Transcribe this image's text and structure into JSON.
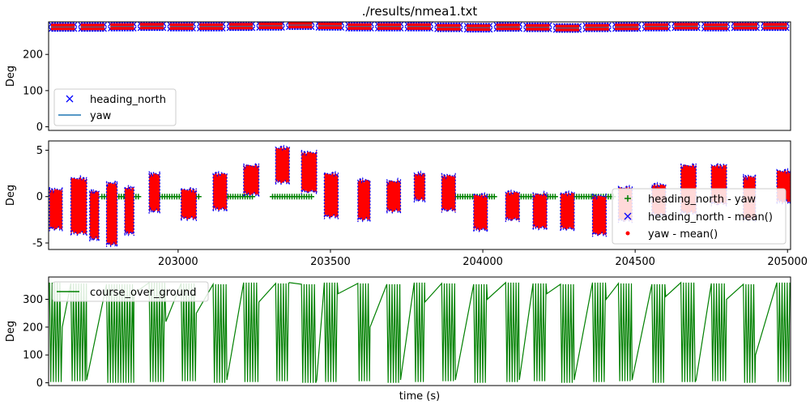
{
  "figure_title": "./results/nmea1.txt",
  "colors": {
    "heading_north": "#0000ff",
    "yaw": "#1f77b4",
    "diff": "#008000",
    "yaw_mean": "#ff0000",
    "cog": "#008000"
  },
  "chart_data": [
    {
      "type": "scatter",
      "title": "./results/nmea1.txt",
      "xlabel": "",
      "ylabel": "Deg",
      "xlim": [
        202575,
        205010
      ],
      "ylim": [
        -10,
        290
      ],
      "yticks": [
        0,
        100,
        200
      ],
      "legend_position": "lower-left",
      "series": [
        {
          "name": "heading_north",
          "marker": "x",
          "segments_y": [
            276,
            276,
            277,
            278,
            277,
            277,
            278,
            279,
            281,
            279,
            277,
            277,
            277,
            275,
            274,
            276,
            275,
            273,
            275,
            276,
            277,
            278,
            277,
            278,
            278
          ]
        },
        {
          "name": "yaw",
          "marker": "line",
          "segments_y": [
            276,
            276,
            277,
            278,
            277,
            277,
            278,
            279,
            281,
            279,
            277,
            277,
            277,
            275,
            274,
            276,
            275,
            273,
            275,
            276,
            277,
            278,
            277,
            278,
            278
          ]
        }
      ]
    },
    {
      "type": "scatter",
      "xlabel": "",
      "ylabel": "Deg",
      "xlim": [
        202575,
        205010
      ],
      "ylim": [
        -5.7,
        6.0
      ],
      "yticks": [
        -5,
        0,
        5
      ],
      "xticks": [
        203000,
        203500,
        204000,
        204500,
        205000
      ],
      "legend_position": "lower-right",
      "series": [
        {
          "name": "heading_north - yaw",
          "marker": "+",
          "segments": [
            [
              202750,
              202870
            ],
            [
              202940,
              203070
            ],
            [
              203140,
              203250
            ],
            [
              203310,
              203440
            ],
            [
              203910,
              204040
            ],
            [
              204110,
              204240
            ],
            [
              204300,
              204430
            ],
            [
              204980,
              205010
            ]
          ],
          "y": 0
        },
        {
          "name": "heading_north - mean()",
          "marker": "x"
        },
        {
          "name": "yaw - mean()",
          "marker": "o"
        }
      ],
      "clusters": [
        {
          "x0": 202578,
          "x1": 202620,
          "top": 0.8,
          "bottom": -3.5
        },
        {
          "x0": 202648,
          "x1": 202700,
          "top": 2.0,
          "bottom": -4.0
        },
        {
          "x0": 202710,
          "x1": 202740,
          "top": 0.6,
          "bottom": -4.6
        },
        {
          "x0": 202765,
          "x1": 202800,
          "top": 1.5,
          "bottom": -5.2
        },
        {
          "x0": 202825,
          "x1": 202855,
          "top": 1.0,
          "bottom": -4.0
        },
        {
          "x0": 202905,
          "x1": 202940,
          "top": 2.5,
          "bottom": -1.6
        },
        {
          "x0": 203010,
          "x1": 203060,
          "top": 0.8,
          "bottom": -2.4
        },
        {
          "x0": 203115,
          "x1": 203160,
          "top": 2.5,
          "bottom": -1.4
        },
        {
          "x0": 203215,
          "x1": 203265,
          "top": 3.4,
          "bottom": 0.2
        },
        {
          "x0": 203320,
          "x1": 203365,
          "top": 5.3,
          "bottom": 1.5
        },
        {
          "x0": 203405,
          "x1": 203455,
          "top": 4.8,
          "bottom": 0.5
        },
        {
          "x0": 203480,
          "x1": 203525,
          "top": 2.5,
          "bottom": -2.2
        },
        {
          "x0": 203590,
          "x1": 203630,
          "top": 1.8,
          "bottom": -2.5
        },
        {
          "x0": 203685,
          "x1": 203730,
          "top": 1.7,
          "bottom": -1.6
        },
        {
          "x0": 203775,
          "x1": 203810,
          "top": 2.5,
          "bottom": -0.4
        },
        {
          "x0": 203865,
          "x1": 203910,
          "top": 2.3,
          "bottom": -1.5
        },
        {
          "x0": 203970,
          "x1": 204015,
          "top": 0.2,
          "bottom": -3.6
        },
        {
          "x0": 204075,
          "x1": 204120,
          "top": 0.5,
          "bottom": -2.5
        },
        {
          "x0": 204165,
          "x1": 204210,
          "top": 0.3,
          "bottom": -3.4
        },
        {
          "x0": 204255,
          "x1": 204300,
          "top": 0.4,
          "bottom": -3.5
        },
        {
          "x0": 204360,
          "x1": 204405,
          "top": 0.1,
          "bottom": -4.1
        },
        {
          "x0": 204445,
          "x1": 204490,
          "top": 1.0,
          "bottom": -2.6
        },
        {
          "x0": 204555,
          "x1": 204600,
          "top": 1.3,
          "bottom": -2.0
        },
        {
          "x0": 204650,
          "x1": 204700,
          "top": 3.4,
          "bottom": -1.8
        },
        {
          "x0": 204750,
          "x1": 204800,
          "top": 3.4,
          "bottom": -0.8
        },
        {
          "x0": 204855,
          "x1": 204895,
          "top": 2.2,
          "bottom": -2.5
        },
        {
          "x0": 204965,
          "x1": 205010,
          "top": 2.8,
          "bottom": -0.6
        }
      ]
    },
    {
      "type": "line",
      "xlabel": "time (s)",
      "ylabel": "Deg",
      "xlim": [
        202575,
        205010
      ],
      "ylim": [
        -10,
        380
      ],
      "yticks": [
        0,
        100,
        200,
        300
      ],
      "legend_position": "upper-left",
      "series": [
        {
          "name": "course_over_ground",
          "marker": "line"
        }
      ],
      "oscillation_bands": [
        [
          202578,
          202620
        ],
        [
          202648,
          202700
        ],
        [
          202765,
          202855
        ],
        [
          202905,
          202960
        ],
        [
          203010,
          203060
        ],
        [
          203115,
          203160
        ],
        [
          203215,
          203265
        ],
        [
          203320,
          203365
        ],
        [
          203405,
          203455
        ],
        [
          203480,
          203525
        ],
        [
          203590,
          203630
        ],
        [
          203685,
          203730
        ],
        [
          203775,
          203810
        ],
        [
          203865,
          203910
        ],
        [
          203970,
          204015
        ],
        [
          204075,
          204120
        ],
        [
          204165,
          204210
        ],
        [
          204255,
          204300
        ],
        [
          204360,
          204405
        ],
        [
          204445,
          204490
        ],
        [
          204555,
          204600
        ],
        [
          204650,
          204700
        ],
        [
          204750,
          204800
        ],
        [
          204855,
          204895
        ],
        [
          204965,
          205010
        ]
      ],
      "connector_y": [
        200,
        10,
        320,
        220,
        250,
        10,
        290,
        360,
        10,
        320,
        200,
        10,
        290,
        10,
        300,
        10,
        320,
        10,
        300,
        10,
        310,
        10,
        300,
        100
      ]
    }
  ]
}
